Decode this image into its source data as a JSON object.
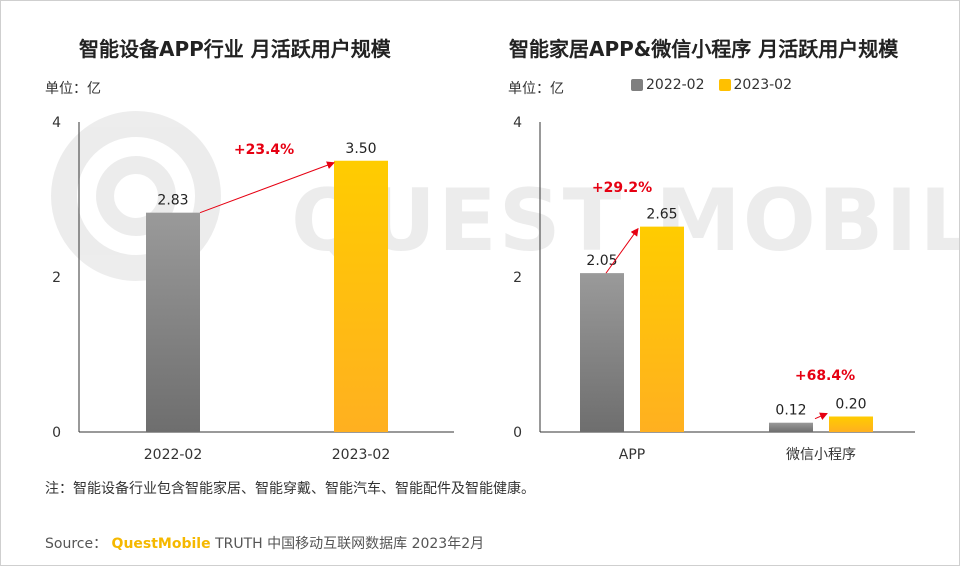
{
  "colors": {
    "y2022": "#7f7f7f",
    "y2023": "#ffc000",
    "growth": "#e60012",
    "axis": "#333333",
    "brand": "#f5b800"
  },
  "watermark": "QUEST MOBILE",
  "chart_data": [
    {
      "type": "bar",
      "title": "智能设备APP行业 月活跃用户规模",
      "unit_label": "单位：亿",
      "categories": [
        "2022-02",
        "2023-02"
      ],
      "values": [
        2.83,
        3.5
      ],
      "value_labels": [
        "2.83",
        "3.50"
      ],
      "bar_colors": [
        "#7f7f7f",
        "#ffc000"
      ],
      "ylim": [
        0,
        4
      ],
      "yticks": [
        "0",
        "2",
        "4"
      ],
      "growth_labels": [
        {
          "text": "+23.4%",
          "from": [
            0,
            2.83
          ],
          "to": [
            1,
            3.5
          ]
        }
      ],
      "grid": false
    },
    {
      "type": "bar",
      "title": "智能家居APP&微信小程序 月活跃用户规模",
      "unit_label": "单位：亿",
      "categories": [
        "APP",
        "微信小程序"
      ],
      "series": [
        {
          "name": "2022-02",
          "values": [
            2.05,
            0.12
          ],
          "labels": [
            "2.05",
            "0.12"
          ],
          "color": "#7f7f7f"
        },
        {
          "name": "2023-02",
          "values": [
            2.65,
            0.2
          ],
          "labels": [
            "2.65",
            "0.20"
          ],
          "color": "#ffc000"
        }
      ],
      "ylim": [
        0,
        4
      ],
      "yticks": [
        "0",
        "2",
        "4"
      ],
      "growth_labels": [
        {
          "text": "+29.2%",
          "category": 0
        },
        {
          "text": "+68.4%",
          "category": 1
        }
      ],
      "legend": "top",
      "grid": false
    }
  ],
  "note": "注：智能设备行业包含智能家居、智能穿戴、智能汽车、智能配件及智能健康。",
  "source": {
    "prefix": "Source：",
    "brand": "QuestMobile",
    "rest": "TRUTH 中国移动互联网数据库 2023年2月"
  }
}
